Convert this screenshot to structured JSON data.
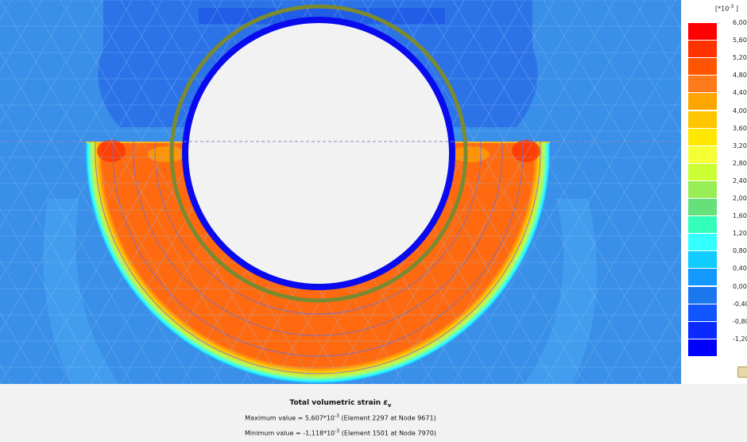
{
  "legend": {
    "unit": {
      "prefix": "[*10",
      "exponent": "-3",
      "suffix": " ]"
    },
    "levels": [
      {
        "label": "6,00",
        "color": "#ff0000"
      },
      {
        "label": "5,60",
        "color": "#ff3300"
      },
      {
        "label": "5,20",
        "color": "#ff5500"
      },
      {
        "label": "4,80",
        "color": "#ff7a1a"
      },
      {
        "label": "4,40",
        "color": "#ffa500"
      },
      {
        "label": "4,00",
        "color": "#ffc600"
      },
      {
        "label": "3,60",
        "color": "#ffe800"
      },
      {
        "label": "3,20",
        "color": "#f5ff33"
      },
      {
        "label": "2,80",
        "color": "#ccff33"
      },
      {
        "label": "2,40",
        "color": "#99ee55"
      },
      {
        "label": "2,00",
        "color": "#66e07a"
      },
      {
        "label": "1,60",
        "color": "#33ffbb"
      },
      {
        "label": "1,20",
        "color": "#33ffff"
      },
      {
        "label": "0,80",
        "color": "#11ccff"
      },
      {
        "label": "0,40",
        "color": "#1199ff"
      },
      {
        "label": "0,00",
        "color": "#1a77ee"
      },
      {
        "label": "-0,40",
        "color": "#1155ff"
      },
      {
        "label": "-0,80",
        "color": "#0a2aff"
      },
      {
        "label": "-1,20",
        "color": "#0000ff"
      }
    ]
  },
  "info": {
    "title_text": "Total volumetric strain ",
    "title_symbol": "ε",
    "title_subscript": "v",
    "max_prefix": "Maximum value = 5,607*10",
    "max_exponent": "-3",
    "max_suffix": "  (Element 2297 at Node 9671)",
    "min_prefix": "Minimum value = -1,118*10",
    "min_exponent": "-3",
    "min_suffix": "  (Element 1501 at Node 7970)"
  },
  "colors": {
    "background_field": "#3a8fe8",
    "orange_zone": "#ff6a10",
    "lining_ring": "#0a0aee",
    "liner_ring": "#7a8a30",
    "opening": "#f2f2f2",
    "mesh": "#7fb4ee"
  }
}
